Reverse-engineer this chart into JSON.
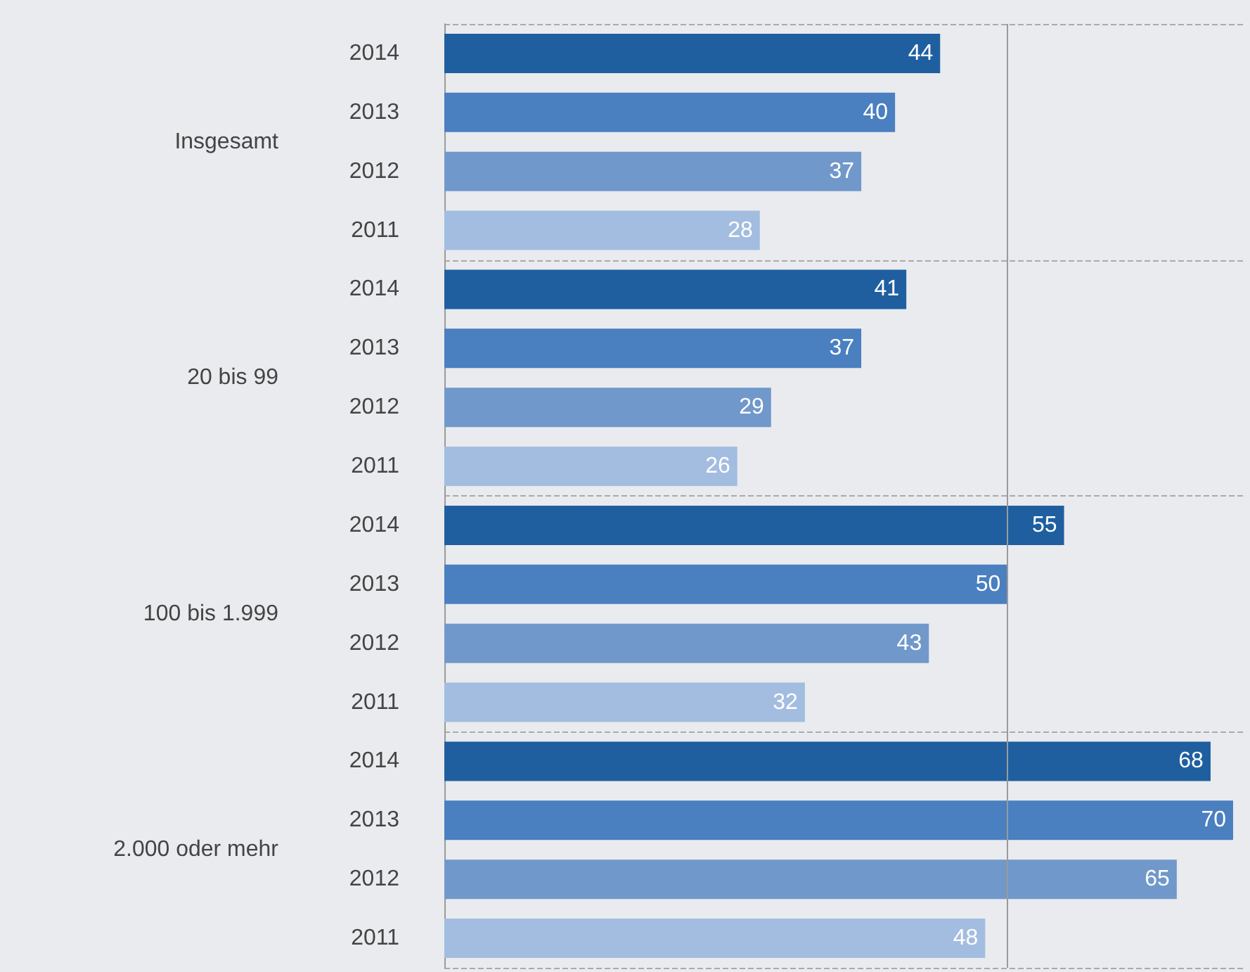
{
  "chart_data": {
    "type": "bar",
    "orientation": "horizontal",
    "categories": [
      "Insgesamt",
      "20 bis 99",
      "100 bis 1.999",
      "2.000 oder mehr"
    ],
    "series": [
      {
        "name": "2014",
        "color": "#1f5fa0",
        "values": [
          44,
          41,
          55,
          68
        ]
      },
      {
        "name": "2013",
        "color": "#4a7fc0",
        "values": [
          40,
          37,
          50,
          70
        ]
      },
      {
        "name": "2012",
        "color": "#7198cb",
        "values": [
          37,
          29,
          43,
          65
        ]
      },
      {
        "name": "2011",
        "color": "#a3bde0",
        "values": [
          28,
          26,
          32,
          48
        ]
      }
    ],
    "xlim": [
      0,
      71
    ],
    "tick_labels": "y",
    "data_labels": true,
    "legend": false,
    "ref_lines": [
      {
        "axis": "x",
        "value": 50,
        "color": "#9a9a9a"
      }
    ]
  }
}
